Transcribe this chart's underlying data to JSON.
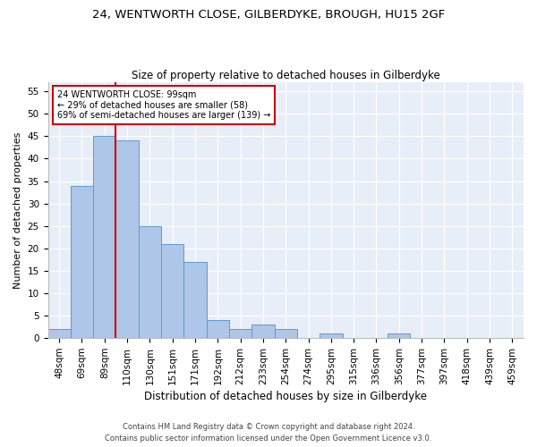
{
  "title1": "24, WENTWORTH CLOSE, GILBERDYKE, BROUGH, HU15 2GF",
  "title2": "Size of property relative to detached houses in Gilberdyke",
  "xlabel": "Distribution of detached houses by size in Gilberdyke",
  "ylabel": "Number of detached properties",
  "categories": [
    "48sqm",
    "69sqm",
    "89sqm",
    "110sqm",
    "130sqm",
    "151sqm",
    "171sqm",
    "192sqm",
    "212sqm",
    "233sqm",
    "254sqm",
    "274sqm",
    "295sqm",
    "315sqm",
    "336sqm",
    "356sqm",
    "377sqm",
    "397sqm",
    "418sqm",
    "439sqm",
    "459sqm"
  ],
  "values": [
    2,
    34,
    45,
    44,
    25,
    21,
    17,
    4,
    2,
    3,
    2,
    0,
    1,
    0,
    0,
    1,
    0,
    0,
    0,
    0,
    0
  ],
  "bar_color": "#aec6e8",
  "bar_edge_color": "#5b9bd5",
  "red_line_x": 2.5,
  "annotation_line1": "24 WENTWORTH CLOSE: 99sqm",
  "annotation_line2": "← 29% of detached houses are smaller (58)",
  "annotation_line3": "69% of semi-detached houses are larger (139) →",
  "annotation_box_color": "#ffffff",
  "annotation_border_color": "#cc0000",
  "ylim": [
    0,
    57
  ],
  "yticks": [
    0,
    5,
    10,
    15,
    20,
    25,
    30,
    35,
    40,
    45,
    50,
    55
  ],
  "footer1": "Contains HM Land Registry data © Crown copyright and database right 2024.",
  "footer2": "Contains public sector information licensed under the Open Government Licence v3.0.",
  "background_color": "#e8eef8",
  "grid_color": "#ffffff",
  "title1_fontsize": 9.5,
  "title2_fontsize": 8.5,
  "xlabel_fontsize": 8.5,
  "ylabel_fontsize": 8.0,
  "tick_fontsize": 7.5,
  "footer_fontsize": 6.0
}
